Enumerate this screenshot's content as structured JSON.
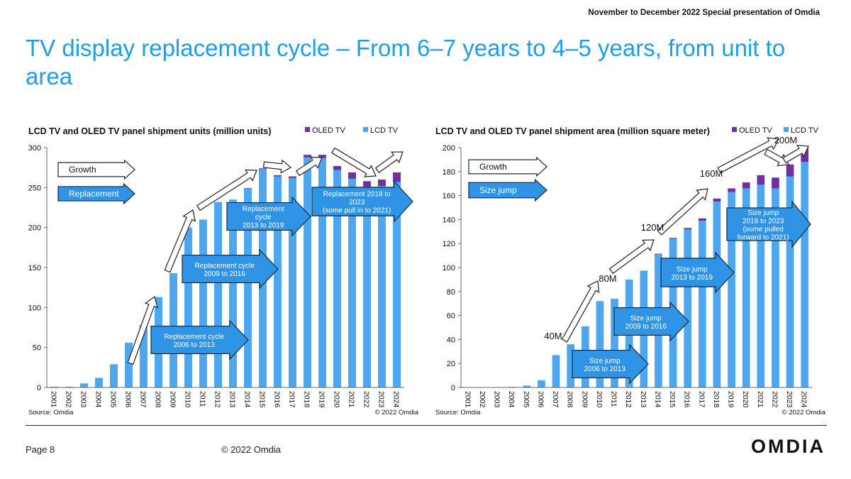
{
  "header": {
    "event": "November to December 2022 Special presentation of Omdia",
    "title": "TV display replacement cycle – From 6–7 years to 4–5 years, from unit to area"
  },
  "footer": {
    "page": "Page 8",
    "copyright": "© 2022 Omdia",
    "logo": "OMDIA"
  },
  "chart_data": [
    {
      "type": "bar",
      "stacked": true,
      "title": "LCD TV and OLED TV panel shipment units (million units)",
      "categories": [
        "2001",
        "2002",
        "2003",
        "2004",
        "2005",
        "2006",
        "2007",
        "2008",
        "2009",
        "2010",
        "2011",
        "2012",
        "2013",
        "2014",
        "2015",
        "2016",
        "2017",
        "2018",
        "2019",
        "2020",
        "2021",
        "2022",
        "2023",
        "2024"
      ],
      "series": [
        {
          "name": "LCD TV",
          "color": "#4ea7ee",
          "values": [
            1,
            1,
            5,
            12,
            29,
            56,
            78,
            113,
            143,
            200,
            210,
            232,
            235,
            249,
            273,
            264,
            262,
            288,
            287,
            272,
            261,
            251,
            252,
            257
          ]
        },
        {
          "name": "OLED TV",
          "color": "#7030a0",
          "values": [
            0,
            0,
            0,
            0,
            0,
            0,
            0,
            0,
            0,
            0,
            0,
            0,
            0,
            0.5,
            1,
            1.5,
            2,
            3,
            4,
            5,
            8,
            7,
            8,
            12
          ]
        }
      ],
      "ylim": [
        0,
        300
      ],
      "yticks": [
        0,
        50,
        100,
        150,
        200,
        250,
        300
      ],
      "source": "Source: Omdia",
      "copyright": "© 2022 Omdia",
      "annotations": [
        "Growth",
        "Replacement",
        "Replacement cycle\n2006 to 2013",
        "Replacement cycle\n2009 to 2016",
        "Replacement\ncycle\n2013 to 2019",
        "Replacement 2018 to\n2023\n(some pull in to 2021)"
      ]
    },
    {
      "type": "bar",
      "stacked": true,
      "title": "LCD TV and OLED TV panel shipment area (million square meter)",
      "categories": [
        "2001",
        "2002",
        "2003",
        "2004",
        "2005",
        "2006",
        "2007",
        "2008",
        "2009",
        "2010",
        "2011",
        "2012",
        "2013",
        "2014",
        "2015",
        "2016",
        "2017",
        "2018",
        "2019",
        "2020",
        "2021",
        "2022",
        "2023",
        "2024"
      ],
      "series": [
        {
          "name": "LCD TV",
          "color": "#4ea7ee",
          "values": [
            0,
            0,
            0,
            0.5,
            1.5,
            6,
            27,
            36,
            51,
            72,
            74,
            90,
            97,
            111,
            124,
            132,
            139,
            155,
            163,
            166,
            169,
            166,
            176,
            188
          ]
        },
        {
          "name": "OLED TV",
          "color": "#7030a0",
          "values": [
            0,
            0,
            0,
            0,
            0,
            0,
            0,
            0,
            0,
            0,
            0,
            0,
            0.3,
            0.5,
            0.7,
            1,
            2,
            2.5,
            3,
            5,
            8,
            9,
            10,
            12
          ]
        }
      ],
      "ylim": [
        0,
        200
      ],
      "yticks": [
        0,
        20,
        40,
        60,
        80,
        100,
        120,
        140,
        160,
        180,
        200
      ],
      "source": "Source: Omdia",
      "copyright": "© 2022 Omdia",
      "annotations": [
        "Growth",
        "Size jump",
        "Size jump\n2006 to 2013",
        "Size jump\n2009 to 2016",
        "Size jump\n2013 to 2019",
        "Size jump\n2018 to 2023\n(some pulled\nforward to 2021)",
        "40M",
        "80M",
        "120M",
        "160M",
        "200M"
      ]
    }
  ]
}
